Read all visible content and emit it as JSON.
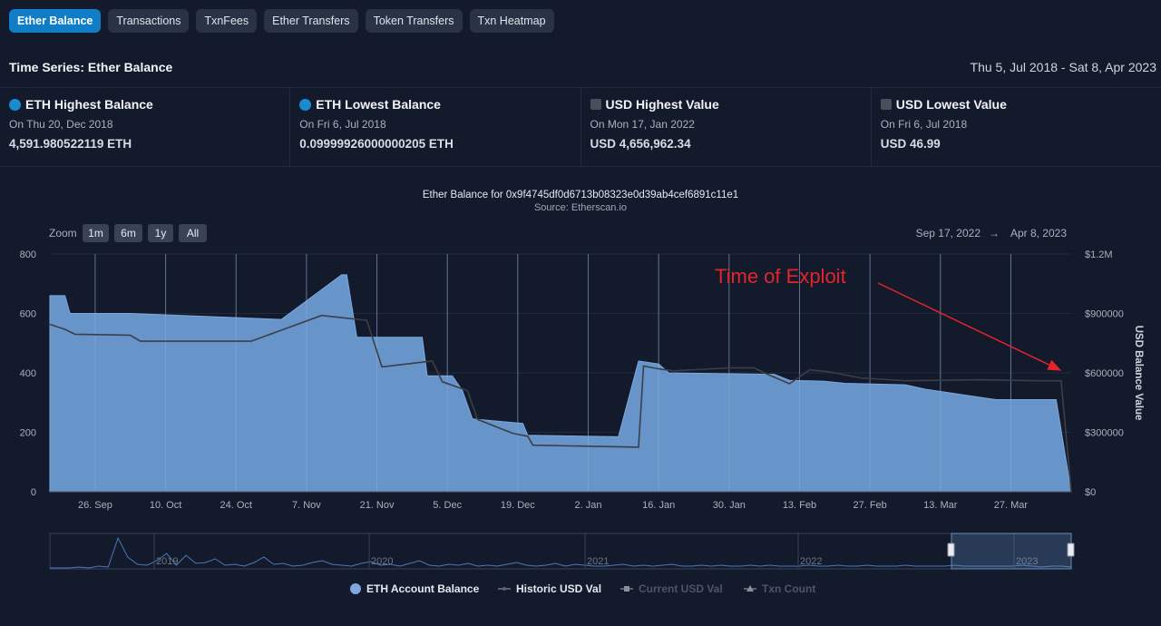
{
  "tabs": [
    {
      "label": "Ether Balance",
      "active": true
    },
    {
      "label": "Transactions",
      "active": false
    },
    {
      "label": "TxnFees",
      "active": false
    },
    {
      "label": "Ether Transfers",
      "active": false
    },
    {
      "label": "Token Transfers",
      "active": false
    },
    {
      "label": "Txn Heatmap",
      "active": false
    }
  ],
  "header": {
    "title": "Time Series: Ether Balance",
    "date_range": "Thu 5, Jul 2018 - Sat 8, Apr 2023"
  },
  "stats": [
    {
      "label": "ETH Highest Balance",
      "date": "On Thu 20, Dec 2018",
      "value": "4,591.980522119 ETH",
      "marker": "dot"
    },
    {
      "label": "ETH Lowest Balance",
      "date": "On Fri 6, Jul 2018",
      "value": "0.09999926000000205 ETH",
      "marker": "dot"
    },
    {
      "label": "USD Highest Value",
      "date": "On Mon 17, Jan 2022",
      "value": "USD 4,656,962.34",
      "marker": "square"
    },
    {
      "label": "USD Lowest Value",
      "date": "On Fri 6, Jul 2018",
      "value": "USD 46.99",
      "marker": "square"
    }
  ],
  "chart": {
    "title": "Ether Balance for 0x9f4745df0d6713b08323e0d39ab4cef6891c11e1",
    "subtitle": "Source: Etherscan.io",
    "zoom_label": "Zoom",
    "zoom_buttons": [
      "1m",
      "6m",
      "1y",
      "All"
    ],
    "range_from": "Sep 17, 2022",
    "range_arrow": "→",
    "range_to": "Apr 8, 2023",
    "annotation": "Time of Exploit",
    "legend": [
      {
        "label": "ETH Account Balance",
        "active": true
      },
      {
        "label": "Historic USD Val",
        "active": true
      },
      {
        "label": "Current USD Val",
        "active": false
      },
      {
        "label": "Txn Count",
        "active": false
      }
    ],
    "navigator_years": [
      "2019",
      "2020",
      "2021",
      "2022",
      "2023"
    ]
  },
  "colors": {
    "accent": "#0f7ec7",
    "area_fill": "#6c9bd2",
    "usd_line": "#3a3f48",
    "annotation": "#e4242b"
  },
  "chart_data": {
    "type": "area",
    "x_ticks": [
      "26. Sep",
      "10. Oct",
      "24. Oct",
      "7. Nov",
      "21. Nov",
      "5. Dec",
      "19. Dec",
      "2. Jan",
      "16. Jan",
      "30. Jan",
      "13. Feb",
      "27. Feb",
      "13. Mar",
      "27. Mar"
    ],
    "y_left": {
      "label": "",
      "ticks": [
        "0",
        "200",
        "400",
        "600",
        "800"
      ],
      "range": [
        0,
        800
      ]
    },
    "y_right": {
      "label": "USD Balance Value",
      "ticks": [
        "$0",
        "$300000",
        "$600000",
        "$900000",
        "$1.2M"
      ],
      "range": [
        0,
        1200000
      ]
    },
    "x_range": [
      "2022-09-17",
      "2023-04-08"
    ],
    "grid": true,
    "legend_position": "bottom",
    "series": [
      {
        "name": "ETH Account Balance",
        "type": "area",
        "points": [
          [
            "2022-09-17",
            660
          ],
          [
            "2022-09-20",
            660
          ],
          [
            "2022-09-21",
            600
          ],
          [
            "2022-10-03",
            600
          ],
          [
            "2022-11-02",
            580
          ],
          [
            "2022-11-14",
            730
          ],
          [
            "2022-11-15",
            730
          ],
          [
            "2022-11-17",
            520
          ],
          [
            "2022-11-30",
            520
          ],
          [
            "2022-12-01",
            390
          ],
          [
            "2022-12-06",
            390
          ],
          [
            "2022-12-08",
            340
          ],
          [
            "2022-12-10",
            245
          ],
          [
            "2022-12-20",
            230
          ],
          [
            "2022-12-21",
            190
          ],
          [
            "2023-01-08",
            185
          ],
          [
            "2023-01-12",
            440
          ],
          [
            "2023-01-16",
            430
          ],
          [
            "2023-01-18",
            400
          ],
          [
            "2023-02-08",
            395
          ],
          [
            "2023-02-11",
            375
          ],
          [
            "2023-02-18",
            372
          ],
          [
            "2023-02-22",
            365
          ],
          [
            "2023-03-06",
            360
          ],
          [
            "2023-03-10",
            345
          ],
          [
            "2023-03-24",
            310
          ],
          [
            "2023-04-05",
            310
          ],
          [
            "2023-04-08",
            0
          ]
        ]
      },
      {
        "name": "Historic USD Val",
        "type": "line",
        "points": [
          [
            "2022-09-17",
            845000
          ],
          [
            "2022-09-20",
            820000
          ],
          [
            "2022-09-22",
            795000
          ],
          [
            "2022-10-03",
            790000
          ],
          [
            "2022-10-05",
            760000
          ],
          [
            "2022-10-27",
            760000
          ],
          [
            "2022-11-10",
            890000
          ],
          [
            "2022-11-19",
            865000
          ],
          [
            "2022-11-22",
            630000
          ],
          [
            "2022-12-02",
            660000
          ],
          [
            "2022-12-04",
            555000
          ],
          [
            "2022-12-09",
            510000
          ],
          [
            "2022-12-11",
            365000
          ],
          [
            "2022-12-14",
            335000
          ],
          [
            "2022-12-18",
            295000
          ],
          [
            "2022-12-21",
            280000
          ],
          [
            "2022-12-22",
            235000
          ],
          [
            "2023-01-12",
            225000
          ],
          [
            "2023-01-13",
            635000
          ],
          [
            "2023-01-16",
            620000
          ],
          [
            "2023-01-19",
            610000
          ],
          [
            "2023-01-30",
            625000
          ],
          [
            "2023-02-04",
            625000
          ],
          [
            "2023-02-06",
            600000
          ],
          [
            "2023-02-11",
            545000
          ],
          [
            "2023-02-15",
            615000
          ],
          [
            "2023-02-19",
            605000
          ],
          [
            "2023-02-25",
            575000
          ],
          [
            "2023-03-06",
            560000
          ],
          [
            "2023-03-21",
            565000
          ],
          [
            "2023-04-02",
            560000
          ],
          [
            "2023-04-06",
            560000
          ],
          [
            "2023-04-08",
            0
          ]
        ]
      }
    ]
  }
}
